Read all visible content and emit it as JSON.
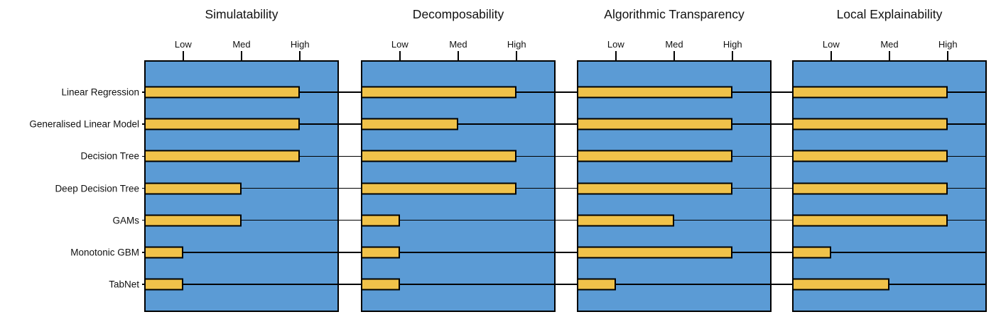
{
  "chart_data": {
    "type": "bar",
    "orientation": "horizontal",
    "categories": [
      "Linear Regression",
      "Generalised Linear Model",
      "Decision Tree",
      "Deep Decision Tree",
      "GAMs",
      "Monotonic GBM",
      "TabNet"
    ],
    "tick_labels": [
      "Low",
      "Med",
      "High"
    ],
    "tick_values": [
      1,
      2,
      3
    ],
    "value_scale": {
      "Low": 1,
      "Med": 2,
      "High": 3
    },
    "panels": [
      {
        "title": "Simulatability",
        "values": [
          3,
          3,
          3,
          2,
          2,
          1,
          1
        ]
      },
      {
        "title": "Decomposability",
        "values": [
          3,
          2,
          3,
          3,
          1,
          1,
          1
        ]
      },
      {
        "title": "Algorithmic Transparency",
        "values": [
          3,
          3,
          3,
          3,
          2,
          3,
          1
        ]
      },
      {
        "title": "Local Explainability",
        "values": [
          3,
          3,
          3,
          3,
          3,
          1,
          2
        ]
      }
    ],
    "legend_position": "none",
    "grid": "horizontal-row-lines",
    "colors": {
      "panel_bg": "#5B9BD5",
      "bar_fill": "#F0C24A",
      "border": "#000000",
      "background": "#FFFFFF"
    }
  }
}
